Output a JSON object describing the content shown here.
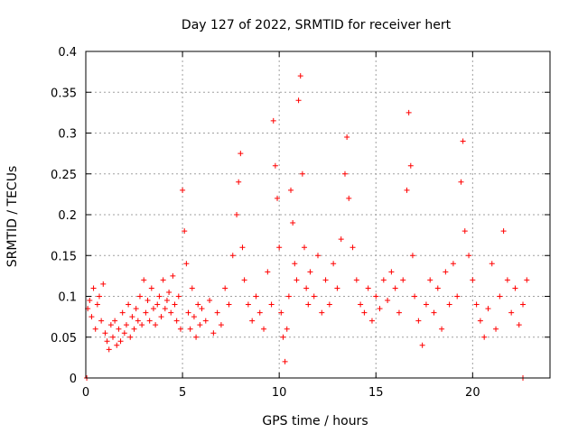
{
  "chart_data": {
    "type": "scatter",
    "title": "Day 127 of 2022, SRMTID for receiver hert",
    "xlabel": "GPS time / hours",
    "ylabel": "SRMTID / TECUs",
    "xlim": [
      0,
      24
    ],
    "ylim": [
      0,
      0.4
    ],
    "xticks": [
      0,
      5,
      10,
      15,
      20
    ],
    "xtick_labels": [
      "0",
      "5",
      "10",
      "15",
      "20"
    ],
    "yticks": [
      0,
      0.05,
      0.1,
      0.15,
      0.2,
      0.25,
      0.3,
      0.35,
      0.4
    ],
    "ytick_labels": [
      "0",
      "0.05",
      "0.1",
      "0.15",
      "0.2",
      "0.25",
      "0.3",
      "0.35",
      "0.4"
    ],
    "grid": true,
    "marker": "+",
    "color": "#ff0000",
    "series": [
      {
        "name": "SRMTID",
        "points": [
          [
            0.05,
            0.0
          ],
          [
            22.6,
            0.0
          ],
          [
            0.1,
            0.085
          ],
          [
            0.2,
            0.095
          ],
          [
            0.3,
            0.075
          ],
          [
            0.4,
            0.11
          ],
          [
            0.5,
            0.06
          ],
          [
            0.6,
            0.09
          ],
          [
            0.7,
            0.1
          ],
          [
            0.8,
            0.07
          ],
          [
            0.9,
            0.115
          ],
          [
            1.0,
            0.055
          ],
          [
            1.1,
            0.045
          ],
          [
            1.2,
            0.035
          ],
          [
            1.3,
            0.065
          ],
          [
            1.4,
            0.05
          ],
          [
            1.5,
            0.07
          ],
          [
            1.6,
            0.04
          ],
          [
            1.7,
            0.06
          ],
          [
            1.8,
            0.045
          ],
          [
            1.9,
            0.08
          ],
          [
            2.0,
            0.055
          ],
          [
            2.1,
            0.065
          ],
          [
            2.2,
            0.09
          ],
          [
            2.3,
            0.05
          ],
          [
            2.4,
            0.075
          ],
          [
            2.5,
            0.06
          ],
          [
            2.6,
            0.085
          ],
          [
            2.7,
            0.07
          ],
          [
            2.8,
            0.1
          ],
          [
            2.9,
            0.065
          ],
          [
            3.0,
            0.12
          ],
          [
            3.1,
            0.08
          ],
          [
            3.2,
            0.095
          ],
          [
            3.3,
            0.07
          ],
          [
            3.4,
            0.11
          ],
          [
            3.5,
            0.085
          ],
          [
            3.6,
            0.065
          ],
          [
            3.7,
            0.09
          ],
          [
            3.8,
            0.1
          ],
          [
            3.9,
            0.075
          ],
          [
            4.0,
            0.12
          ],
          [
            4.1,
            0.085
          ],
          [
            4.2,
            0.095
          ],
          [
            4.3,
            0.105
          ],
          [
            4.4,
            0.08
          ],
          [
            4.5,
            0.125
          ],
          [
            4.6,
            0.09
          ],
          [
            4.7,
            0.07
          ],
          [
            4.8,
            0.1
          ],
          [
            4.9,
            0.06
          ],
          [
            5.0,
            0.23
          ],
          [
            5.1,
            0.18
          ],
          [
            5.2,
            0.14
          ],
          [
            5.3,
            0.08
          ],
          [
            5.4,
            0.06
          ],
          [
            5.5,
            0.11
          ],
          [
            5.6,
            0.075
          ],
          [
            5.7,
            0.05
          ],
          [
            5.8,
            0.09
          ],
          [
            5.9,
            0.065
          ],
          [
            6.0,
            0.085
          ],
          [
            6.2,
            0.07
          ],
          [
            6.4,
            0.095
          ],
          [
            6.6,
            0.055
          ],
          [
            6.8,
            0.08
          ],
          [
            7.0,
            0.065
          ],
          [
            7.2,
            0.11
          ],
          [
            7.4,
            0.09
          ],
          [
            7.6,
            0.15
          ],
          [
            7.8,
            0.2
          ],
          [
            7.9,
            0.24
          ],
          [
            8.0,
            0.275
          ],
          [
            8.1,
            0.16
          ],
          [
            8.2,
            0.12
          ],
          [
            8.4,
            0.09
          ],
          [
            8.6,
            0.07
          ],
          [
            8.8,
            0.1
          ],
          [
            9.0,
            0.08
          ],
          [
            9.2,
            0.06
          ],
          [
            9.4,
            0.13
          ],
          [
            9.6,
            0.09
          ],
          [
            9.7,
            0.315
          ],
          [
            9.8,
            0.26
          ],
          [
            9.9,
            0.22
          ],
          [
            10.0,
            0.16
          ],
          [
            10.1,
            0.08
          ],
          [
            10.2,
            0.05
          ],
          [
            10.3,
            0.02
          ],
          [
            10.4,
            0.06
          ],
          [
            10.5,
            0.1
          ],
          [
            10.6,
            0.23
          ],
          [
            10.7,
            0.19
          ],
          [
            10.8,
            0.14
          ],
          [
            10.9,
            0.12
          ],
          [
            11.0,
            0.34
          ],
          [
            11.1,
            0.37
          ],
          [
            11.2,
            0.25
          ],
          [
            11.3,
            0.16
          ],
          [
            11.4,
            0.11
          ],
          [
            11.5,
            0.09
          ],
          [
            11.6,
            0.13
          ],
          [
            11.8,
            0.1
          ],
          [
            12.0,
            0.15
          ],
          [
            12.2,
            0.08
          ],
          [
            12.4,
            0.12
          ],
          [
            12.6,
            0.09
          ],
          [
            12.8,
            0.14
          ],
          [
            13.0,
            0.11
          ],
          [
            13.2,
            0.17
          ],
          [
            13.4,
            0.25
          ],
          [
            13.5,
            0.295
          ],
          [
            13.6,
            0.22
          ],
          [
            13.8,
            0.16
          ],
          [
            14.0,
            0.12
          ],
          [
            14.2,
            0.09
          ],
          [
            14.4,
            0.08
          ],
          [
            14.6,
            0.11
          ],
          [
            14.8,
            0.07
          ],
          [
            15.0,
            0.1
          ],
          [
            15.2,
            0.085
          ],
          [
            15.4,
            0.12
          ],
          [
            15.6,
            0.095
          ],
          [
            15.8,
            0.13
          ],
          [
            16.0,
            0.11
          ],
          [
            16.2,
            0.08
          ],
          [
            16.4,
            0.12
          ],
          [
            16.6,
            0.23
          ],
          [
            16.7,
            0.325
          ],
          [
            16.8,
            0.26
          ],
          [
            16.9,
            0.15
          ],
          [
            17.0,
            0.1
          ],
          [
            17.2,
            0.07
          ],
          [
            17.4,
            0.04
          ],
          [
            17.6,
            0.09
          ],
          [
            17.8,
            0.12
          ],
          [
            18.0,
            0.08
          ],
          [
            18.2,
            0.11
          ],
          [
            18.4,
            0.06
          ],
          [
            18.6,
            0.13
          ],
          [
            18.8,
            0.09
          ],
          [
            19.0,
            0.14
          ],
          [
            19.2,
            0.1
          ],
          [
            19.4,
            0.24
          ],
          [
            19.5,
            0.29
          ],
          [
            19.6,
            0.18
          ],
          [
            19.8,
            0.15
          ],
          [
            20.0,
            0.12
          ],
          [
            20.2,
            0.09
          ],
          [
            20.4,
            0.07
          ],
          [
            20.6,
            0.05
          ],
          [
            20.8,
            0.085
          ],
          [
            21.0,
            0.14
          ],
          [
            21.2,
            0.06
          ],
          [
            21.4,
            0.1
          ],
          [
            21.6,
            0.18
          ],
          [
            21.8,
            0.12
          ],
          [
            22.0,
            0.08
          ],
          [
            22.2,
            0.11
          ],
          [
            22.4,
            0.065
          ],
          [
            22.6,
            0.09
          ],
          [
            22.8,
            0.12
          ]
        ]
      }
    ]
  }
}
